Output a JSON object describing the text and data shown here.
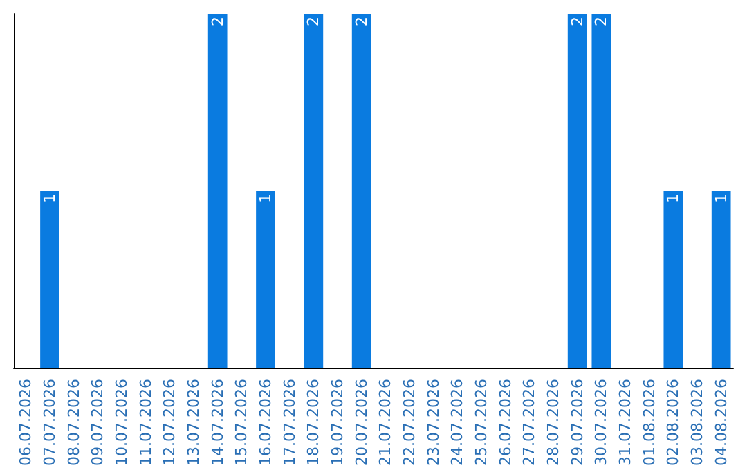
{
  "chart_data": {
    "type": "bar",
    "categories": [
      "06.07.2026",
      "07.07.2026",
      "08.07.2026",
      "09.07.2026",
      "10.07.2026",
      "11.07.2026",
      "12.07.2026",
      "13.07.2026",
      "14.07.2026",
      "15.07.2026",
      "16.07.2026",
      "17.07.2026",
      "18.07.2026",
      "19.07.2026",
      "20.07.2026",
      "21.07.2026",
      "22.07.2026",
      "23.07.2026",
      "24.07.2026",
      "25.07.2026",
      "26.07.2026",
      "27.07.2026",
      "28.07.2026",
      "29.07.2026",
      "30.07.2026",
      "31.07.2026",
      "01.08.2026",
      "02.08.2026",
      "03.08.2026",
      "04.08.2026"
    ],
    "values": [
      0,
      1,
      0,
      0,
      0,
      0,
      0,
      0,
      2,
      0,
      1,
      0,
      2,
      0,
      2,
      0,
      0,
      0,
      0,
      0,
      0,
      0,
      0,
      2,
      2,
      0,
      0,
      1,
      0,
      1
    ],
    "value_labels": [
      null,
      "1",
      null,
      null,
      null,
      null,
      null,
      null,
      "2",
      null,
      "1",
      null,
      "2",
      null,
      "2",
      null,
      null,
      null,
      null,
      null,
      null,
      null,
      null,
      "2",
      "2",
      null,
      null,
      "1",
      null,
      "1"
    ],
    "color": "#0a7be0",
    "tick_labels": "x"
  }
}
